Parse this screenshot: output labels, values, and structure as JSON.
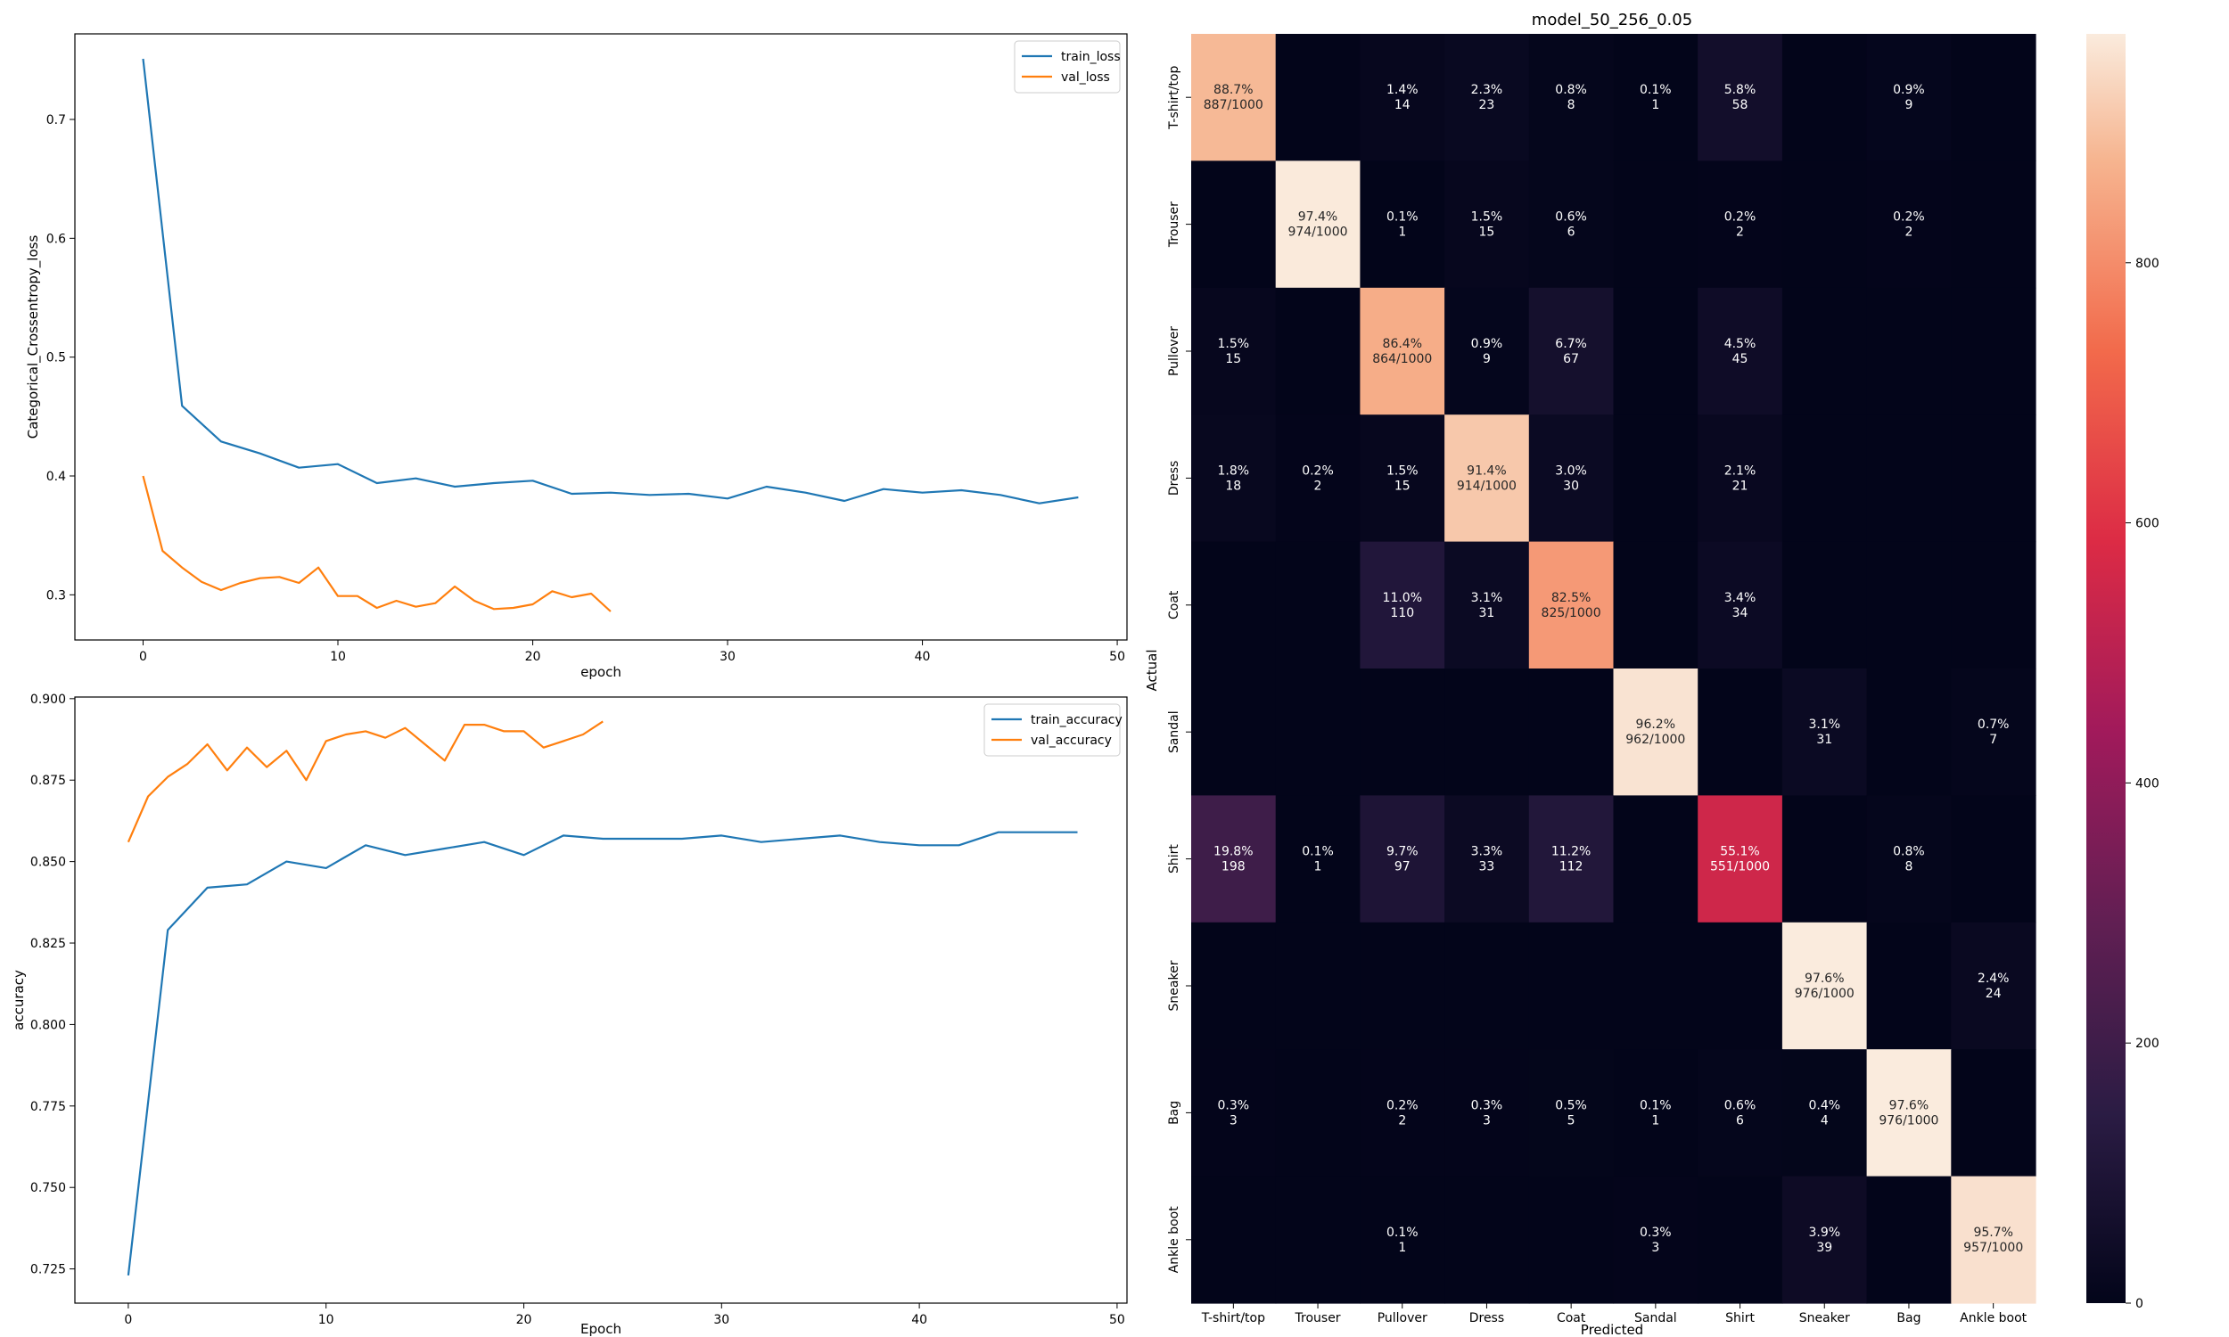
{
  "chart_data": [
    {
      "type": "line",
      "xlabel": "epoch",
      "ylabel": "Categorical_Crossentropy_loss",
      "xlim": [
        -3.5,
        50.5
      ],
      "ylim": [
        0.262,
        0.772
      ],
      "xticks": [
        0,
        10,
        20,
        30,
        40,
        50
      ],
      "yticks": [
        0.3,
        0.4,
        0.5,
        0.6,
        0.7
      ],
      "legend_position": "top-right",
      "series": [
        {
          "name": "train_loss",
          "color": "#1f77b4",
          "x": [
            0,
            2,
            4,
            6,
            8,
            10,
            12,
            14,
            16,
            18,
            20,
            22,
            24,
            26,
            28,
            30,
            32,
            34,
            36,
            38,
            40,
            42,
            44,
            46,
            48
          ],
          "values": [
            0.751,
            0.459,
            0.429,
            0.419,
            0.407,
            0.41,
            0.394,
            0.398,
            0.391,
            0.394,
            0.396,
            0.385,
            0.386,
            0.384,
            0.385,
            0.381,
            0.391,
            0.386,
            0.379,
            0.389,
            0.386,
            0.388,
            0.384,
            0.377,
            0.382
          ]
        },
        {
          "name": "val_loss",
          "color": "#ff7f0e",
          "x": [
            0,
            1,
            2,
            3,
            4,
            5,
            6,
            7,
            8,
            9,
            10,
            11,
            12,
            13,
            14,
            15,
            16,
            17,
            18,
            19,
            20,
            21,
            22,
            23,
            24
          ],
          "values": [
            0.4,
            0.337,
            0.323,
            0.311,
            0.304,
            0.31,
            0.314,
            0.315,
            0.31,
            0.323,
            0.299,
            0.299,
            0.289,
            0.295,
            0.29,
            0.293,
            0.307,
            0.295,
            0.288,
            0.289,
            0.292,
            0.303,
            0.298,
            0.301,
            0.286
          ]
        }
      ]
    },
    {
      "type": "line",
      "xlabel": "Epoch",
      "ylabel": "accuracy",
      "xlim": [
        -2.7,
        50.5
      ],
      "ylim": [
        0.7145,
        0.9005
      ],
      "xticks": [
        0,
        10,
        20,
        30,
        40,
        50
      ],
      "yticks": [
        0.725,
        0.75,
        0.775,
        0.8,
        0.825,
        0.85,
        0.875,
        0.9
      ],
      "ytick_labels": [
        "0.725",
        "0.750",
        "0.775",
        "0.800",
        "0.825",
        "0.850",
        "0.875",
        "0.900"
      ],
      "legend_position": "top-right",
      "series": [
        {
          "name": "train_accuracy",
          "color": "#1f77b4",
          "x": [
            0,
            2,
            4,
            6,
            8,
            10,
            12,
            14,
            16,
            18,
            20,
            22,
            24,
            26,
            28,
            30,
            32,
            34,
            36,
            38,
            40,
            42,
            44,
            46,
            48
          ],
          "values": [
            0.723,
            0.829,
            0.842,
            0.843,
            0.85,
            0.848,
            0.855,
            0.852,
            0.854,
            0.856,
            0.852,
            0.858,
            0.857,
            0.857,
            0.857,
            0.858,
            0.856,
            0.857,
            0.858,
            0.856,
            0.855,
            0.855,
            0.859,
            0.859,
            0.859
          ]
        },
        {
          "name": "val_accuracy",
          "color": "#ff7f0e",
          "x": [
            0,
            1,
            2,
            3,
            4,
            5,
            6,
            7,
            8,
            9,
            10,
            11,
            12,
            13,
            14,
            15,
            16,
            17,
            18,
            19,
            20,
            21,
            22,
            23,
            24
          ],
          "values": [
            0.856,
            0.87,
            0.876,
            0.88,
            0.886,
            0.878,
            0.885,
            0.879,
            0.884,
            0.875,
            0.887,
            0.889,
            0.89,
            0.888,
            0.891,
            0.886,
            0.881,
            0.892,
            0.892,
            0.89,
            0.89,
            0.885,
            0.887,
            0.889,
            0.893
          ]
        }
      ]
    },
    {
      "type": "heatmap",
      "title": "model_50_256_0.05",
      "xlabel": "Predicted",
      "ylabel": "Actual",
      "categories": [
        "T-shirt/top",
        "Trouser",
        "Pullover",
        "Dress",
        "Coat",
        "Sandal",
        "Shirt",
        "Sneaker",
        "Bag",
        "Ankle boot"
      ],
      "colorbar": {
        "min": 0,
        "max": 976,
        "ticks": [
          0,
          200,
          400,
          600,
          800
        ]
      },
      "matrix": [
        [
          887,
          0,
          14,
          23,
          8,
          1,
          58,
          0,
          9,
          0
        ],
        [
          0,
          974,
          1,
          15,
          6,
          0,
          2,
          0,
          2,
          0
        ],
        [
          15,
          0,
          864,
          9,
          67,
          0,
          45,
          0,
          0,
          0
        ],
        [
          18,
          2,
          15,
          914,
          30,
          0,
          21,
          0,
          0,
          0
        ],
        [
          0,
          0,
          110,
          31,
          825,
          0,
          34,
          0,
          0,
          0
        ],
        [
          0,
          0,
          0,
          0,
          0,
          962,
          0,
          31,
          0,
          7
        ],
        [
          198,
          1,
          97,
          33,
          112,
          0,
          551,
          0,
          8,
          0
        ],
        [
          0,
          0,
          0,
          0,
          0,
          0,
          0,
          976,
          0,
          24
        ],
        [
          3,
          0,
          2,
          3,
          5,
          1,
          6,
          4,
          976,
          0
        ],
        [
          0,
          0,
          1,
          0,
          0,
          3,
          0,
          39,
          0,
          957
        ]
      ],
      "percent_labels": [
        [
          "88.7%",
          "",
          "1.4%",
          "2.3%",
          "0.8%",
          "0.1%",
          "5.8%",
          "",
          "0.9%",
          ""
        ],
        [
          "",
          "97.4%",
          "0.1%",
          "1.5%",
          "0.6%",
          "",
          "0.2%",
          "",
          "0.2%",
          ""
        ],
        [
          "1.5%",
          "",
          "86.4%",
          "0.9%",
          "6.7%",
          "",
          "4.5%",
          "",
          "",
          ""
        ],
        [
          "1.8%",
          "0.2%",
          "1.5%",
          "91.4%",
          "3.0%",
          "",
          "2.1%",
          "",
          "",
          ""
        ],
        [
          "",
          "",
          "11.0%",
          "3.1%",
          "82.5%",
          "",
          "3.4%",
          "",
          "",
          ""
        ],
        [
          "",
          "",
          "",
          "",
          "",
          "96.2%",
          "",
          "3.1%",
          "",
          "0.7%"
        ],
        [
          "19.8%",
          "0.1%",
          "9.7%",
          "3.3%",
          "11.2%",
          "",
          "55.1%",
          "",
          "0.8%",
          ""
        ],
        [
          "",
          "",
          "",
          "",
          "",
          "",
          "",
          "97.6%",
          "",
          "2.4%"
        ],
        [
          "0.3%",
          "",
          "0.2%",
          "0.3%",
          "0.5%",
          "0.1%",
          "0.6%",
          "0.4%",
          "97.6%",
          ""
        ],
        [
          "",
          "",
          "0.1%",
          "",
          "",
          "0.3%",
          "",
          "3.9%",
          "",
          "95.7%"
        ]
      ],
      "count_labels": [
        [
          "887/1000",
          "",
          "14",
          "23",
          "8",
          "1",
          "58",
          "",
          "9",
          ""
        ],
        [
          "",
          "974/1000",
          "1",
          "15",
          "6",
          "",
          "2",
          "",
          "2",
          ""
        ],
        [
          "15",
          "",
          "864/1000",
          "9",
          "67",
          "",
          "45",
          "",
          "",
          ""
        ],
        [
          "18",
          "2",
          "15",
          "914/1000",
          "30",
          "",
          "21",
          "",
          "",
          ""
        ],
        [
          "",
          "",
          "110",
          "31",
          "825/1000",
          "",
          "34",
          "",
          "",
          ""
        ],
        [
          "",
          "",
          "",
          "",
          "",
          "962/1000",
          "",
          "31",
          "",
          "7"
        ],
        [
          "198",
          "1",
          "97",
          "33",
          "112",
          "",
          "551/1000",
          "",
          "8",
          ""
        ],
        [
          "",
          "",
          "",
          "",
          "",
          "",
          "",
          "976/1000",
          "",
          "24"
        ],
        [
          "3",
          "",
          "2",
          "3",
          "5",
          "1",
          "6",
          "4",
          "976/1000",
          ""
        ],
        [
          "",
          "",
          "1",
          "",
          "",
          "3",
          "",
          "39",
          "",
          "957/1000"
        ]
      ]
    }
  ]
}
